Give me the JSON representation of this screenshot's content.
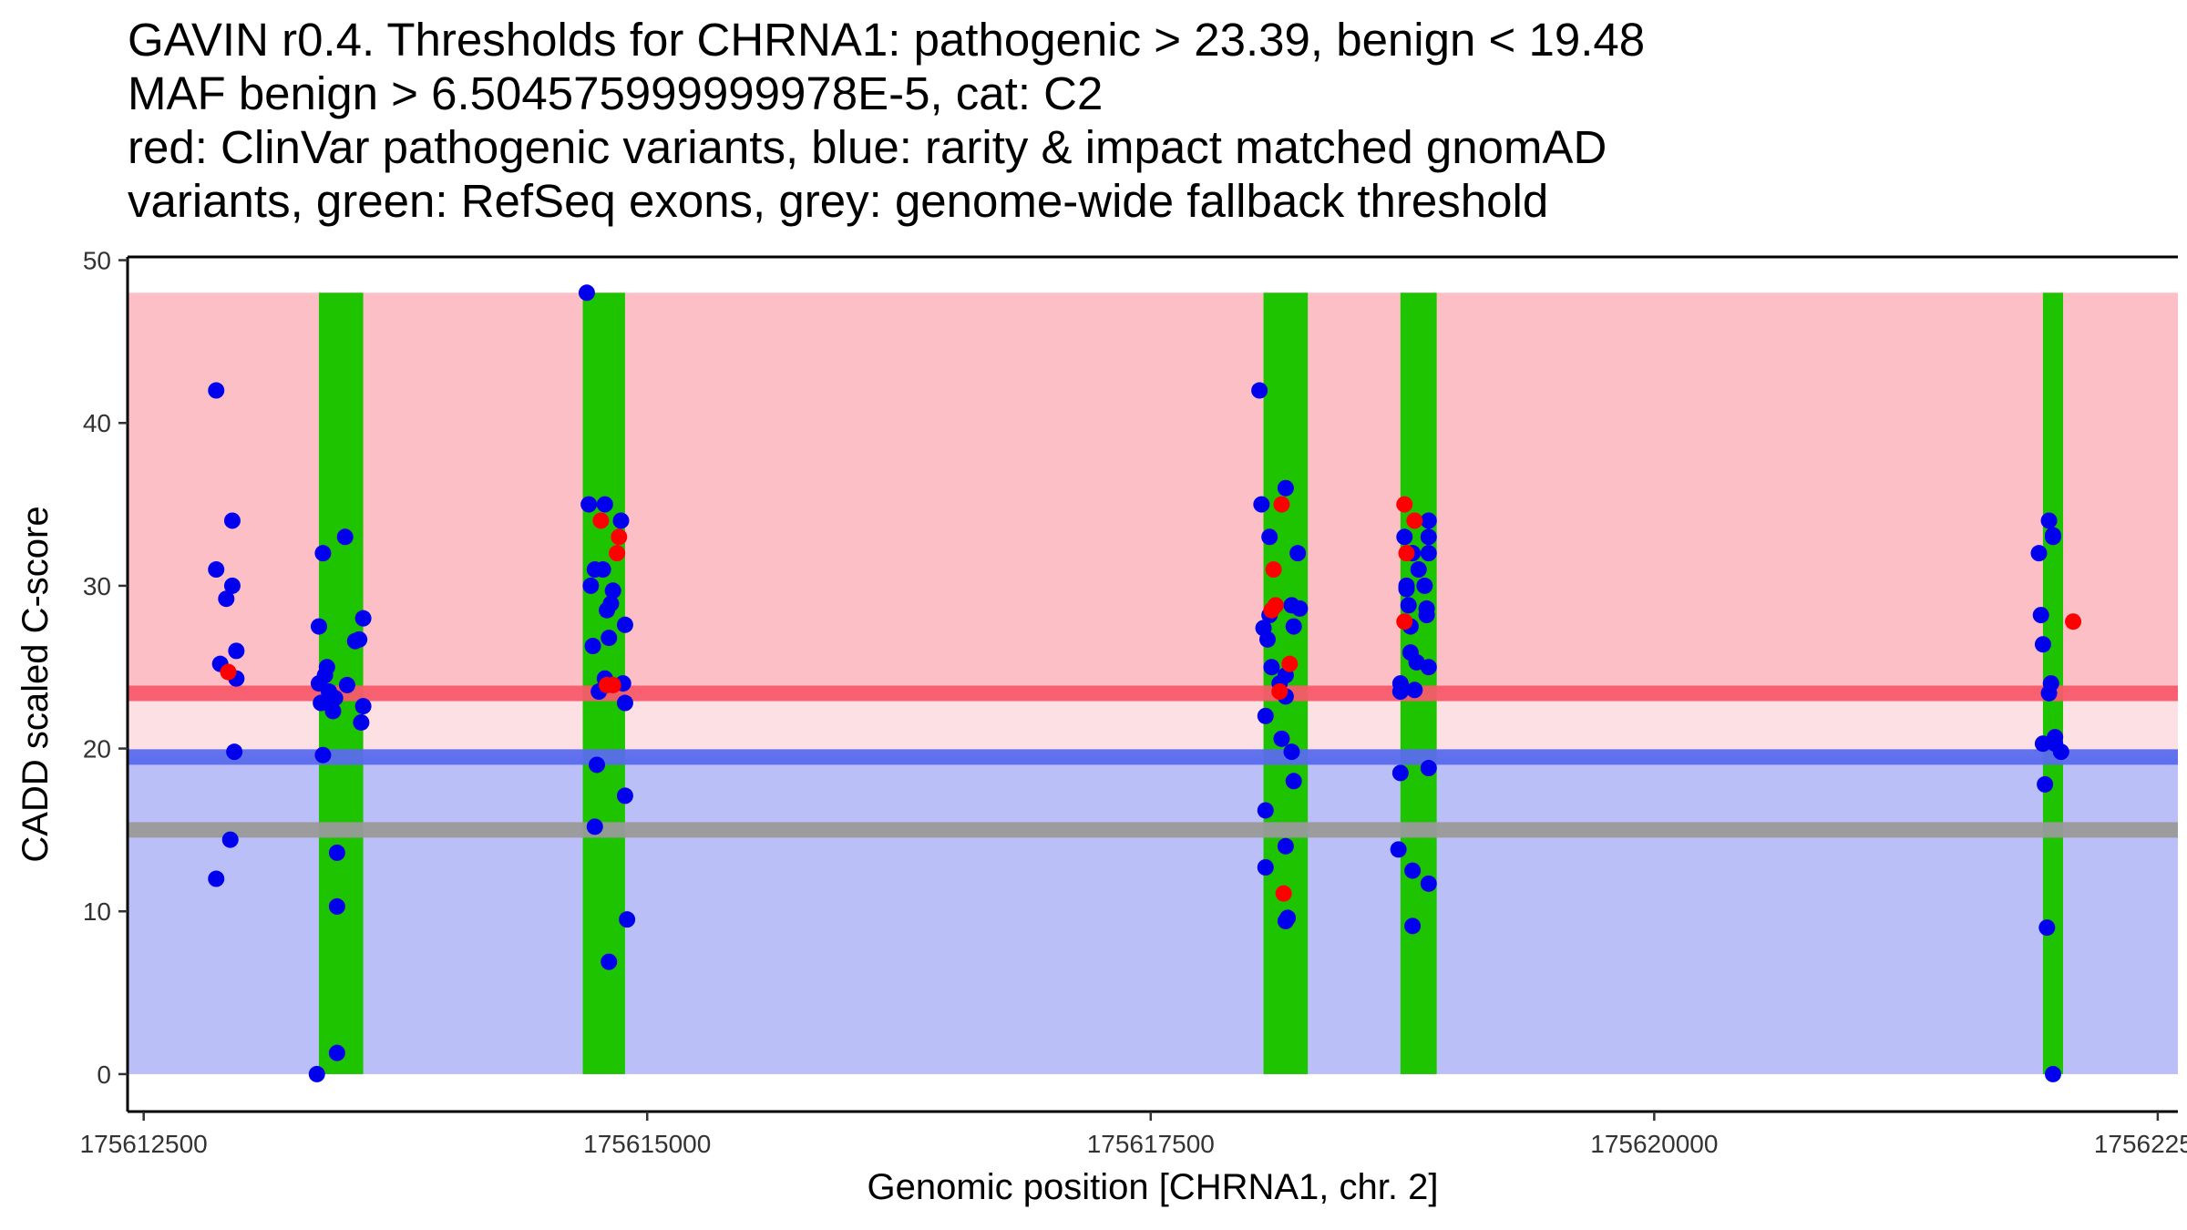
{
  "title_lines": [
    "GAVIN r0.4. Thresholds for CHRNA1: pathogenic > 23.39, benign < 19.48",
    "MAF benign > 6.504575999999978E-5, cat: C2",
    "red: ClinVar pathogenic variants, blue: rarity & impact matched gnomAD",
    "variants, green: RefSeq exons, grey: genome-wide fallback threshold"
  ],
  "chart_data": {
    "type": "scatter",
    "xlabel": "Genomic position [CHRNA1, chr. 2]",
    "ylabel": "CADD scaled C-score",
    "xlim": [
      175612420,
      175622600
    ],
    "ylim": [
      -2.3,
      50.2
    ],
    "xticks": [
      175612500,
      175615000,
      175617500,
      175620000,
      175622500
    ],
    "xtick_labels": [
      "175612500",
      "175615000",
      "175617500",
      "175620000",
      "175622500"
    ],
    "yticks": [
      0,
      10,
      20,
      30,
      40,
      50
    ],
    "ytick_labels": [
      "0",
      "10",
      "20",
      "30",
      "40",
      "50"
    ],
    "bands": [
      {
        "name": "pathogenic-region",
        "from": 23.39,
        "to": 48,
        "color": "#fbbfc5"
      },
      {
        "name": "intermediate-region",
        "from": 19.48,
        "to": 23.39,
        "color": "#fde0e3"
      },
      {
        "name": "benign-region",
        "from": 0,
        "to": 19.48,
        "color": "#bbbff8"
      }
    ],
    "threshold_lines": [
      {
        "name": "pathogenic-threshold",
        "y": 23.39,
        "color": "#f85a6a"
      },
      {
        "name": "benign-threshold",
        "y": 19.48,
        "color": "#5a6bee"
      },
      {
        "name": "fallback-threshold",
        "y": 15.0,
        "color": "#9a9a9a"
      }
    ],
    "exons": [
      {
        "start": 175613370,
        "end": 175613590
      },
      {
        "start": 175614680,
        "end": 175614890
      },
      {
        "start": 175618060,
        "end": 175618280
      },
      {
        "start": 175618740,
        "end": 175618920
      },
      {
        "start": 175621930,
        "end": 175622030
      }
    ],
    "colors": {
      "exon": "#1ec400",
      "pathogenic": "#ff0000",
      "benign": "#0000ee"
    },
    "series": [
      {
        "name": "ClinVar pathogenic variants",
        "color": "#ff0000",
        "points": [
          [
            175612920,
            24.7
          ],
          [
            175614770,
            34.0
          ],
          [
            175614800,
            23.9
          ],
          [
            175614830,
            23.9
          ],
          [
            175614850,
            32.0
          ],
          [
            175614860,
            33.0
          ],
          [
            175618100,
            28.5
          ],
          [
            175618110,
            31.0
          ],
          [
            175618120,
            28.8
          ],
          [
            175618140,
            23.5
          ],
          [
            175618150,
            35.0
          ],
          [
            175618160,
            11.1
          ],
          [
            175618190,
            25.2
          ],
          [
            175618760,
            35.0
          ],
          [
            175618760,
            27.8
          ],
          [
            175618770,
            32.0
          ],
          [
            175618810,
            34.0
          ],
          [
            175622080,
            27.8
          ]
        ]
      },
      {
        "name": "gnomAD rarity & impact matched variants",
        "color": "#0000ee",
        "points": [
          [
            175612860,
            42.0
          ],
          [
            175612860,
            31.0
          ],
          [
            175612860,
            12.0
          ],
          [
            175612880,
            25.2
          ],
          [
            175612910,
            29.2
          ],
          [
            175612940,
            34.0
          ],
          [
            175612940,
            30.0
          ],
          [
            175612950,
            19.8
          ],
          [
            175612960,
            26.0
          ],
          [
            175612960,
            24.3
          ],
          [
            175612930,
            14.4
          ],
          [
            175613360,
            0.0
          ],
          [
            175613370,
            27.5
          ],
          [
            175613370,
            24.0
          ],
          [
            175613380,
            22.8
          ],
          [
            175613390,
            32.0
          ],
          [
            175613390,
            19.6
          ],
          [
            175613400,
            24.5
          ],
          [
            175613410,
            25.0
          ],
          [
            175613420,
            23.5
          ],
          [
            175613430,
            22.8
          ],
          [
            175613440,
            22.3
          ],
          [
            175613450,
            23.1
          ],
          [
            175613460,
            13.6
          ],
          [
            175613460,
            10.3
          ],
          [
            175613460,
            1.3
          ],
          [
            175613500,
            33.0
          ],
          [
            175613510,
            23.9
          ],
          [
            175613550,
            26.6
          ],
          [
            175613570,
            26.7
          ],
          [
            175613590,
            28.0
          ],
          [
            175613590,
            22.6
          ],
          [
            175613580,
            21.6
          ],
          [
            175614700,
            48.0
          ],
          [
            175614710,
            35.0
          ],
          [
            175614720,
            30.0
          ],
          [
            175614730,
            26.3
          ],
          [
            175614740,
            31.0
          ],
          [
            175614750,
            19.0
          ],
          [
            175614740,
            15.2
          ],
          [
            175614760,
            23.5
          ],
          [
            175614780,
            31.0
          ],
          [
            175614790,
            35.0
          ],
          [
            175614790,
            24.3
          ],
          [
            175614800,
            28.5
          ],
          [
            175614810,
            26.8
          ],
          [
            175614810,
            6.9
          ],
          [
            175614820,
            28.9
          ],
          [
            175614830,
            29.7
          ],
          [
            175614870,
            34.0
          ],
          [
            175614880,
            24.0
          ],
          [
            175614890,
            27.6
          ],
          [
            175614890,
            22.8
          ],
          [
            175614890,
            17.1
          ],
          [
            175614900,
            9.5
          ],
          [
            175618040,
            42.0
          ],
          [
            175618050,
            35.0
          ],
          [
            175618060,
            27.4
          ],
          [
            175618070,
            22.0
          ],
          [
            175618070,
            16.2
          ],
          [
            175618070,
            12.7
          ],
          [
            175618080,
            26.7
          ],
          [
            175618090,
            33.0
          ],
          [
            175618090,
            28.2
          ],
          [
            175618100,
            25.0
          ],
          [
            175618140,
            24.0
          ],
          [
            175618150,
            20.6
          ],
          [
            175618170,
            36.0
          ],
          [
            175618170,
            24.5
          ],
          [
            175618170,
            23.2
          ],
          [
            175618170,
            14.0
          ],
          [
            175618170,
            9.4
          ],
          [
            175618180,
            9.6
          ],
          [
            175618200,
            28.8
          ],
          [
            175618200,
            19.8
          ],
          [
            175618210,
            18.0
          ],
          [
            175618210,
            27.5
          ],
          [
            175618230,
            32.0
          ],
          [
            175618240,
            28.6
          ],
          [
            175618740,
            24.0
          ],
          [
            175618740,
            23.5
          ],
          [
            175618740,
            18.5
          ],
          [
            175618730,
            13.8
          ],
          [
            175618760,
            33.0
          ],
          [
            175618770,
            30.0
          ],
          [
            175618770,
            29.8
          ],
          [
            175618780,
            28.8
          ],
          [
            175618790,
            27.5
          ],
          [
            175618790,
            25.9
          ],
          [
            175618800,
            32.0
          ],
          [
            175618800,
            9.1
          ],
          [
            175618800,
            12.5
          ],
          [
            175618810,
            23.6
          ],
          [
            175618820,
            25.3
          ],
          [
            175618830,
            31.0
          ],
          [
            175618860,
            30.0
          ],
          [
            175618870,
            28.6
          ],
          [
            175618870,
            28.2
          ],
          [
            175618880,
            34.0
          ],
          [
            175618880,
            33.0
          ],
          [
            175618880,
            32.0
          ],
          [
            175618880,
            25.0
          ],
          [
            175618880,
            18.8
          ],
          [
            175618880,
            11.7
          ],
          [
            175621910,
            32.0
          ],
          [
            175621920,
            28.2
          ],
          [
            175621930,
            26.4
          ],
          [
            175621930,
            20.3
          ],
          [
            175621940,
            17.8
          ],
          [
            175621950,
            9.0
          ],
          [
            175621960,
            34.0
          ],
          [
            175621960,
            23.4
          ],
          [
            175621970,
            24.0
          ],
          [
            175621980,
            33.0
          ],
          [
            175621990,
            20.3
          ],
          [
            175621990,
            20.7
          ],
          [
            175622020,
            19.8
          ],
          [
            175621980,
            0.0
          ],
          [
            175621980,
            33.1
          ]
        ]
      }
    ]
  }
}
